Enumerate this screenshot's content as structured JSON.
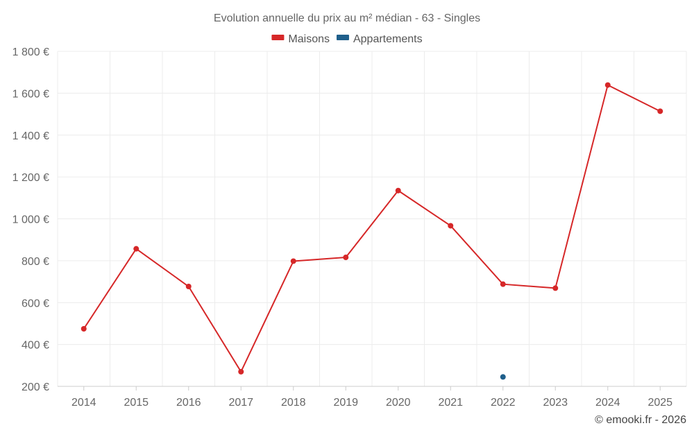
{
  "chart_data": {
    "type": "line",
    "title": "Evolution annuelle du prix au m² médian - 63 - Singles",
    "categories": [
      "2014",
      "2015",
      "2016",
      "2017",
      "2018",
      "2019",
      "2020",
      "2021",
      "2022",
      "2023",
      "2024",
      "2025"
    ],
    "series": [
      {
        "name": "Maisons",
        "color": "#d62728",
        "values": [
          475,
          857,
          677,
          270,
          798,
          816,
          1135,
          967,
          688,
          669,
          1639,
          1514
        ]
      },
      {
        "name": "Appartements",
        "color": "#1f5f8b",
        "values": [
          null,
          null,
          null,
          null,
          null,
          null,
          null,
          null,
          245,
          null,
          null,
          null
        ]
      }
    ],
    "y_ticks": [
      200,
      400,
      600,
      800,
      1000,
      1200,
      1400,
      1600,
      1800
    ],
    "y_tick_labels": [
      "200 €",
      "400 €",
      "600 €",
      "800 €",
      "1 000 €",
      "1 200 €",
      "1 400 €",
      "1 600 €",
      "1 800 €"
    ],
    "ylim": [
      200,
      1800
    ],
    "xlabel": "",
    "ylabel": "",
    "grid": true,
    "legend_position": "top-center"
  },
  "credit": "© emooki.fr - 2026"
}
